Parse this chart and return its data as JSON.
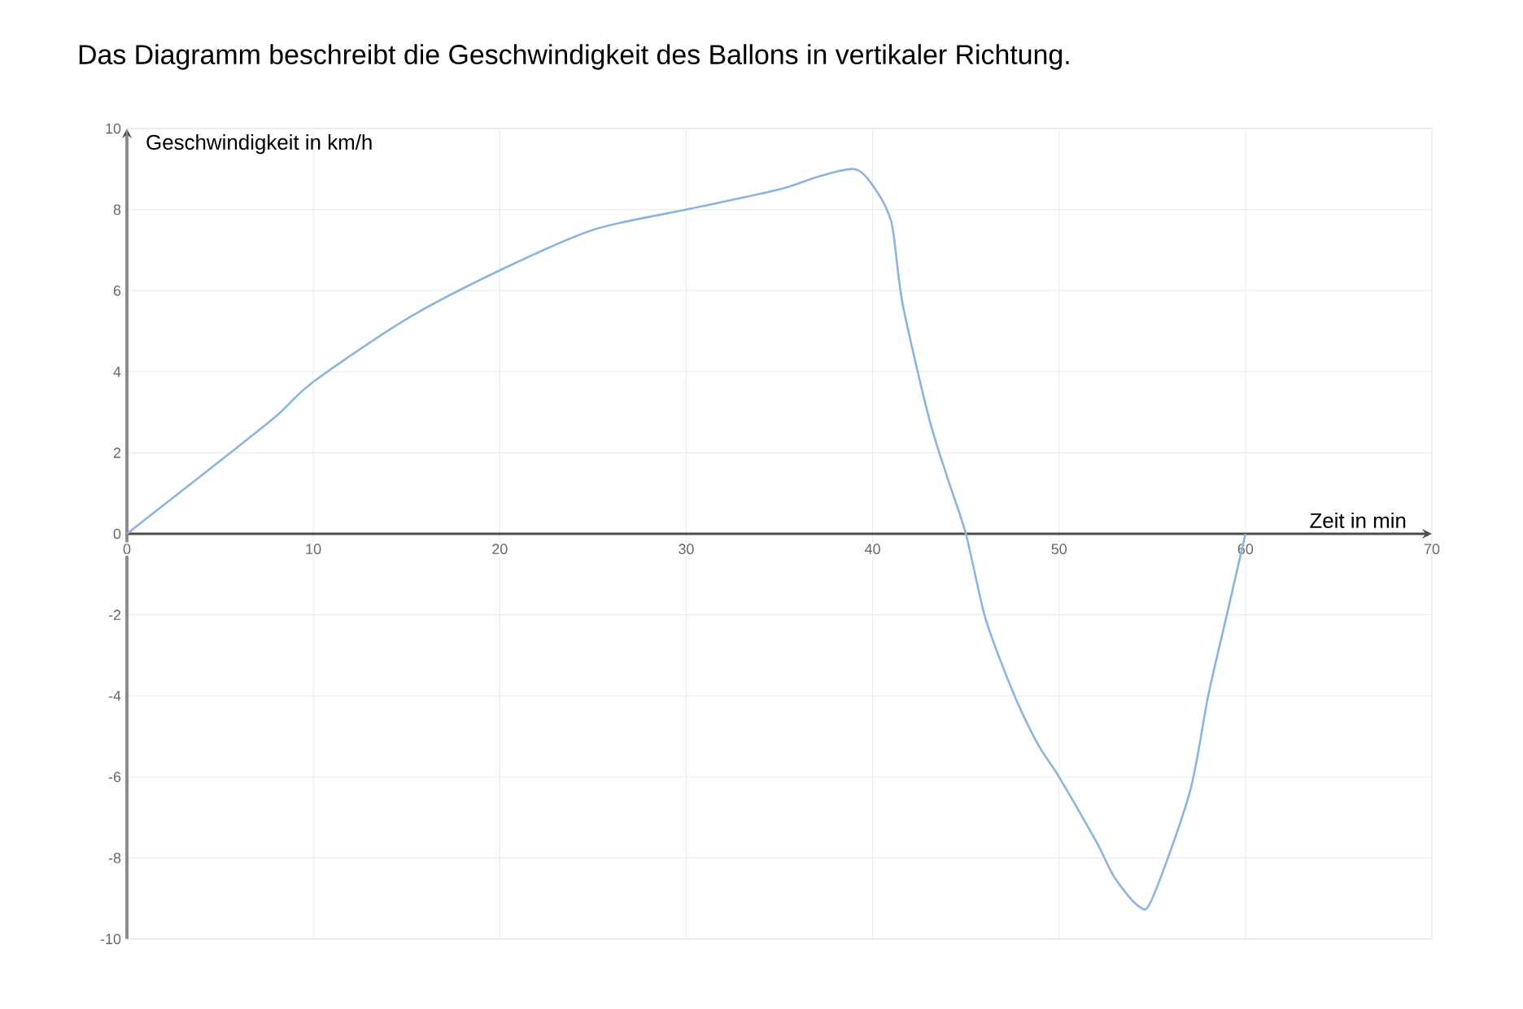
{
  "chart_data": {
    "type": "line",
    "title": "Das Diagramm beschreibt die Geschwindigkeit des Ballons in vertikaler Richtung.",
    "xlabel": "Zeit in min",
    "ylabel": "Geschwindigkeit in km/h",
    "x": [
      0,
      5,
      8,
      10,
      15,
      20,
      25,
      30,
      35,
      37,
      39,
      40,
      41,
      41.6,
      43,
      44,
      45,
      46,
      47,
      48,
      49,
      50,
      52,
      53,
      54.3,
      55,
      57,
      58,
      59,
      60
    ],
    "values": [
      0,
      1.8,
      2.9,
      3.75,
      5.3,
      6.5,
      7.5,
      8,
      8.5,
      8.8,
      9,
      8.6,
      7.7,
      5.7,
      2.9,
      1.4,
      0,
      -2,
      -3.3,
      -4.4,
      -5.3,
      -6,
      -7.6,
      -8.5,
      -9.2,
      -9,
      -6.4,
      -4,
      -2,
      0
    ],
    "color": "#8db4dc",
    "xlim": [
      0,
      70
    ],
    "ylim": [
      -10,
      10
    ],
    "xticks": [
      0,
      10,
      20,
      30,
      40,
      50,
      60,
      70
    ],
    "yticks": [
      -10,
      -8,
      -6,
      -4,
      -2,
      0,
      2,
      4,
      6,
      8,
      10
    ],
    "grid": true
  }
}
